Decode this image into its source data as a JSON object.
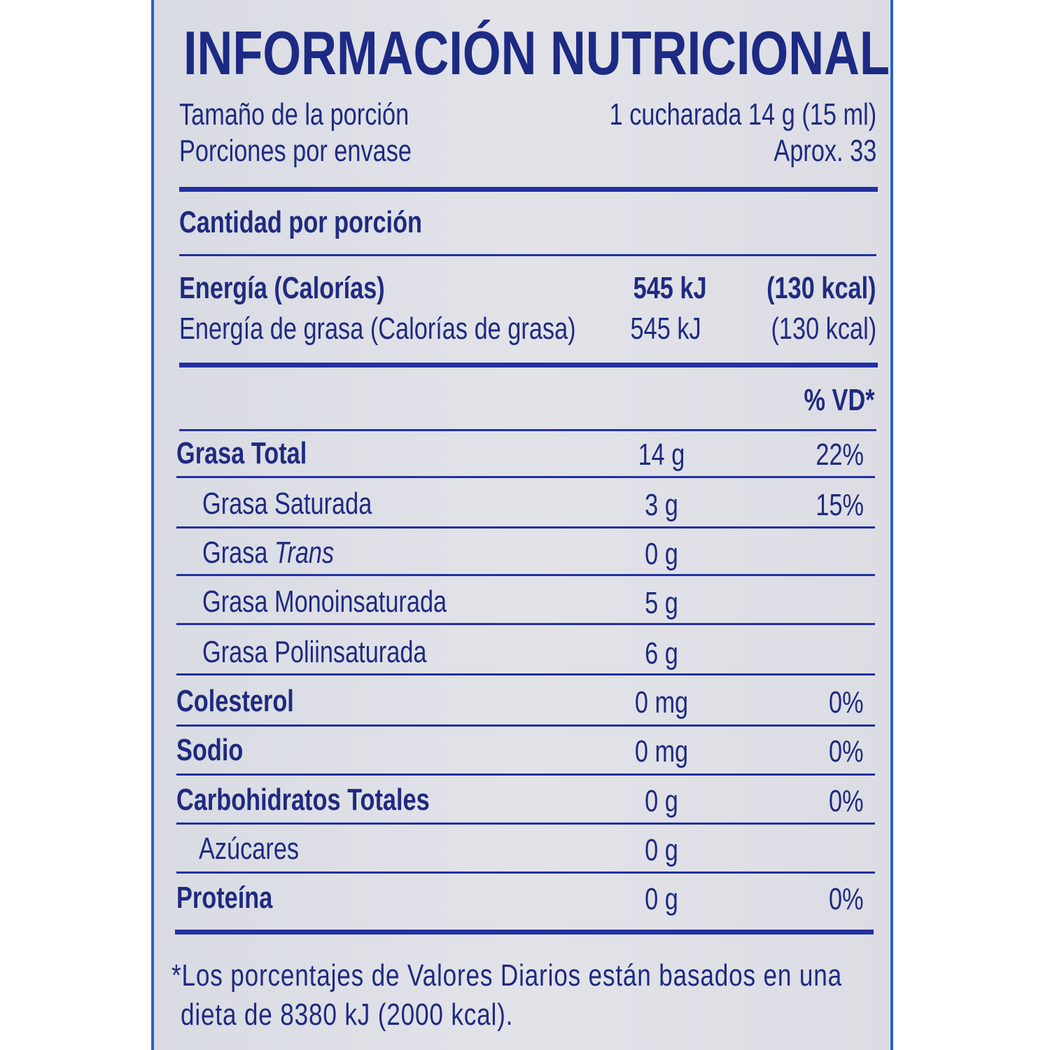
{
  "title": "INFORMACIÓN NUTRICIONAL",
  "serving": {
    "size_label": "Tamaño de la porción",
    "size_value": "1 cucharada 14 g (15 ml)",
    "per_container_label": "Porciones por envase",
    "per_container_value": "Aprox. 33"
  },
  "amount_per_serving": "Cantidad por porción",
  "energy": {
    "label": "Energía (Calorías)",
    "kj": "545 kJ",
    "kcal": "(130 kcal)",
    "fat_label": "Energía de grasa (Calorías de grasa)",
    "fat_kj": "545 kJ",
    "fat_kcal": "(130 kcal)"
  },
  "dv_header": "% VD*",
  "nutrients": [
    {
      "label": "Grasa Total",
      "amount": "14 g",
      "dv": "22%"
    },
    {
      "label": "Grasa Saturada",
      "amount": "3 g",
      "dv": "15%"
    },
    {
      "label": "Grasa ",
      "label_italic": "Trans",
      "amount": "0 g",
      "dv": ""
    },
    {
      "label": "Grasa Monoinsaturada",
      "amount": "5 g",
      "dv": ""
    },
    {
      "label": "Grasa Poliinsaturada",
      "amount": "6 g",
      "dv": ""
    },
    {
      "label": "Colesterol",
      "amount": "0 mg",
      "dv": "0%"
    },
    {
      "label": "Sodio",
      "amount": "0 mg",
      "dv": "0%"
    },
    {
      "label": "Carbohidratos Totales",
      "amount": "0 g",
      "dv": "0%"
    },
    {
      "label": "Azúcares",
      "amount": "0 g",
      "dv": ""
    },
    {
      "label": "Proteína",
      "amount": "0 g",
      "dv": "0%"
    }
  ],
  "footnote_line1": "*Los porcentajes de Valores Diarios están basados en una",
  "footnote_line2": "dieta de 8380 kJ (2000 kcal).",
  "colors": {
    "ink": "#1f2a80",
    "border": "#2a63c6",
    "background": "#dcdde4"
  }
}
